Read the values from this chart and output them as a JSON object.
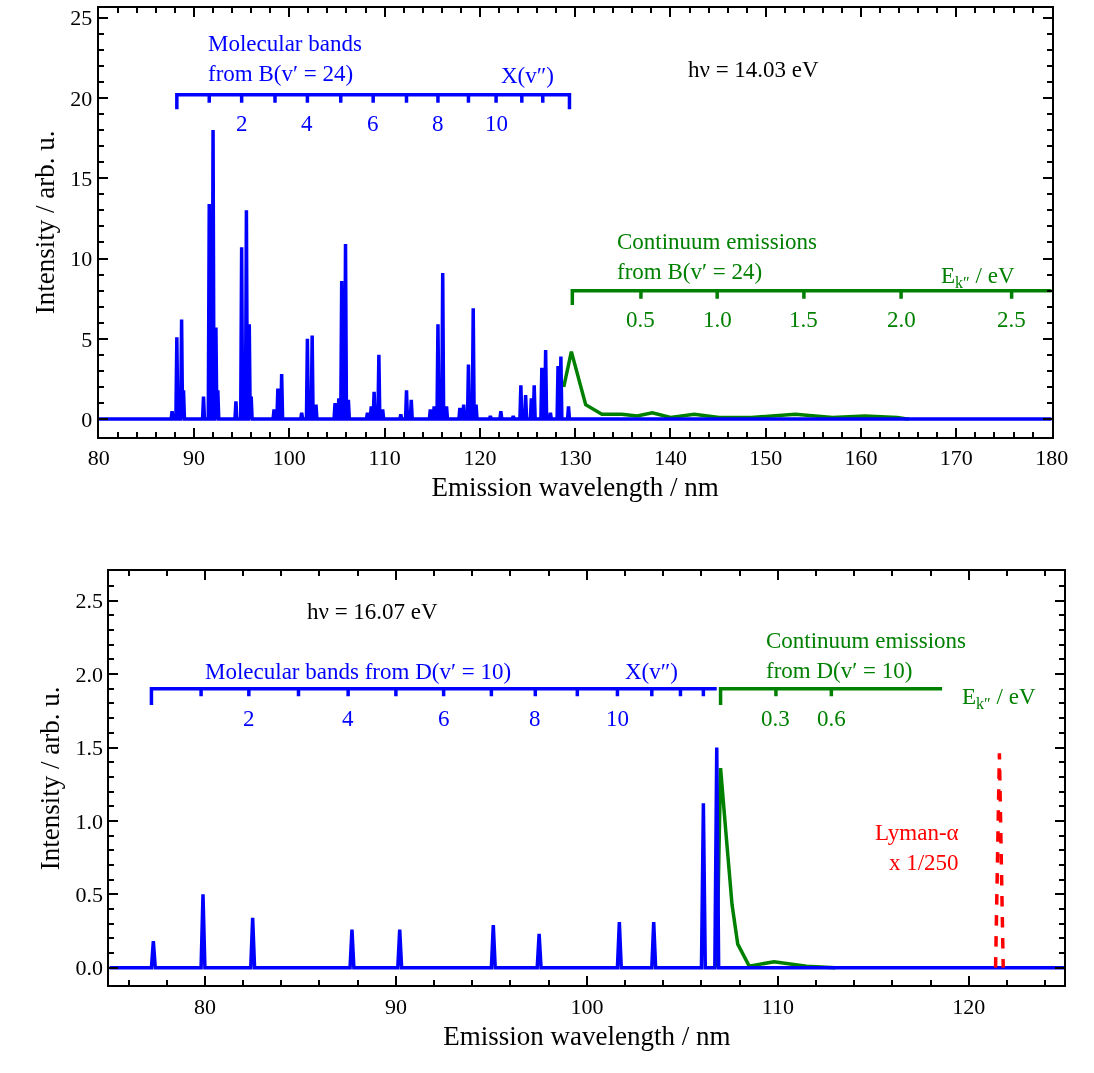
{
  "chart_data": [
    {
      "type": "line",
      "xlabel": "Emission wavelength / nm",
      "ylabel": "Intensity / arb. u.",
      "xlim": [
        80,
        180
      ],
      "ylim": [
        -1.1,
        25.6
      ],
      "xticks": [
        80,
        {
          "value": 82,
          "label": null
        },
        {
          "value": 84,
          "label": null
        },
        {
          "value": 86,
          "label": null
        },
        {
          "value": 88,
          "label": null
        },
        90,
        {
          "value": 92,
          "label": null
        },
        {
          "value": 94,
          "label": null
        },
        {
          "value": 96,
          "label": null
        },
        {
          "value": 98,
          "label": null
        },
        100,
        {
          "value": 102,
          "label": null
        },
        {
          "value": 104,
          "label": null
        },
        {
          "value": 106,
          "label": null
        },
        {
          "value": 108,
          "label": null
        },
        110,
        {
          "value": 112,
          "label": null
        },
        {
          "value": 114,
          "label": null
        },
        {
          "value": 116,
          "label": null
        },
        {
          "value": 118,
          "label": null
        },
        120,
        {
          "value": 122,
          "label": null
        },
        {
          "value": 124,
          "label": null
        },
        {
          "value": 126,
          "label": null
        },
        {
          "value": 128,
          "label": null
        },
        130,
        {
          "value": 132,
          "label": null
        },
        {
          "value": 134,
          "label": null
        },
        {
          "value": 136,
          "label": null
        },
        {
          "value": 138,
          "label": null
        },
        140,
        {
          "value": 142,
          "label": null
        },
        {
          "value": 144,
          "label": null
        },
        {
          "value": 146,
          "label": null
        },
        {
          "value": 148,
          "label": null
        },
        150,
        {
          "value": 152,
          "label": null
        },
        {
          "value": 154,
          "label": null
        },
        {
          "value": 156,
          "label": null
        },
        {
          "value": 158,
          "label": null
        },
        160,
        {
          "value": 162,
          "label": null
        },
        {
          "value": 164,
          "label": null
        },
        {
          "value": 166,
          "label": null
        },
        {
          "value": 168,
          "label": null
        },
        170,
        {
          "value": 172,
          "label": null
        },
        {
          "value": 174,
          "label": null
        },
        {
          "value": 176,
          "label": null
        },
        {
          "value": 178,
          "label": null
        },
        180
      ],
      "yticks": [
        0,
        {
          "value": 1,
          "label": null
        },
        {
          "value": 2,
          "label": null
        },
        {
          "value": 3,
          "label": null
        },
        {
          "value": 4,
          "label": null
        },
        5,
        {
          "value": 6,
          "label": null
        },
        {
          "value": 7,
          "label": null
        },
        {
          "value": 8,
          "label": null
        },
        {
          "value": 9,
          "label": null
        },
        10,
        {
          "value": 11,
          "label": null
        },
        {
          "value": 12,
          "label": null
        },
        {
          "value": 13,
          "label": null
        },
        {
          "value": 14,
          "label": null
        },
        15,
        {
          "value": 16,
          "label": null
        },
        {
          "value": 17,
          "label": null
        },
        {
          "value": 18,
          "label": null
        },
        {
          "value": 19,
          "label": null
        },
        20,
        {
          "value": 21,
          "label": null
        },
        {
          "value": 22,
          "label": null
        },
        {
          "value": 23,
          "label": null
        },
        {
          "value": 24,
          "label": null
        },
        25
      ],
      "series": [
        {
          "color": "#008000",
          "x": [
            128.8,
            129.6,
            131.1,
            132.8,
            134.9,
            136.5,
            138.1,
            140.0,
            142.5,
            145.1,
            148.5,
            153.1,
            157.0,
            160.4,
            163.8,
            165.0
          ],
          "values": [
            2.0,
            4.2,
            0.9,
            0.3,
            0.3,
            0.2,
            0.4,
            0.1,
            0.3,
            0.1,
            0.1,
            0.3,
            0.1,
            0.2,
            0.1,
            0
          ]
        },
        {
          "color": "#0000ff",
          "x": [
            80,
            87.6,
            87.7,
            87.8,
            88.1,
            88.2,
            88.3,
            88.6,
            88.7,
            88.8,
            88.9,
            89.0,
            90.9,
            91.0,
            91.1,
            91.5,
            91.6,
            91.7,
            91.9,
            92.0,
            92.1,
            92.2,
            92.3,
            92.4,
            92.5,
            92.6,
            94.3,
            94.4,
            94.5,
            94.9,
            95.0,
            95.1,
            95.4,
            95.5,
            95.6,
            95.7,
            95.8,
            95.9,
            96.0,
            96.1,
            98.3,
            98.4,
            98.5,
            98.7,
            98.8,
            98.9,
            99.1,
            99.2,
            99.3,
            101.2,
            101.3,
            101.4,
            101.8,
            101.9,
            102.0,
            102.3,
            102.4,
            102.5,
            102.7,
            102.8,
            102.9,
            104.7,
            104.8,
            104.9,
            105.1,
            105.2,
            105.3,
            105.4,
            105.5,
            105.6,
            105.8,
            105.9,
            106.0,
            106.1,
            106.2,
            106.3,
            108.1,
            108.2,
            108.3,
            108.5,
            108.6,
            108.7,
            108.8,
            108.9,
            109.0,
            109.3,
            109.4,
            109.5,
            109.7,
            109.8,
            109.9,
            111.6,
            111.7,
            111.8,
            112.2,
            112.3,
            112.4,
            112.7,
            112.8,
            112.9,
            114.7,
            114.8,
            114.9,
            115.1,
            115.2,
            115.3,
            115.5,
            115.6,
            115.7,
            116.0,
            116.1,
            116.2,
            116.4,
            116.5,
            116.6,
            117.8,
            117.9,
            118.0,
            118.2,
            118.3,
            118.4,
            118.7,
            118.8,
            118.9,
            119.2,
            119.3,
            119.4,
            119.5,
            119.6,
            119.7,
            121.0,
            121.1,
            121.2,
            122.1,
            122.2,
            122.3,
            123.4,
            123.5,
            123.6,
            124.2,
            124.3,
            124.4,
            124.7,
            124.8,
            124.9,
            125.3,
            125.4,
            125.5,
            125.6,
            125.7,
            125.8,
            126.4,
            126.5,
            126.6,
            126.8,
            126.9,
            127.0,
            127.3,
            127.4,
            127.5,
            128.1,
            128.2,
            128.3,
            128.4,
            128.5,
            128.6,
            129.2,
            129.3,
            129.4,
            180
          ],
          "values": [
            0,
            0,
            0.5,
            0,
            0,
            5.1,
            0,
            0,
            6.2,
            0,
            1.8,
            0,
            0,
            1.4,
            0,
            0,
            13.4,
            0,
            0,
            18.0,
            0,
            0,
            5.7,
            0,
            1.8,
            0,
            0,
            1.1,
            0,
            0,
            10.7,
            0,
            0,
            13.0,
            0,
            0,
            5.9,
            0,
            1.4,
            0,
            0,
            0.6,
            0,
            0,
            1.9,
            0,
            0,
            2.8,
            0,
            0,
            0.4,
            0,
            0,
            5.0,
            0,
            0,
            5.2,
            0,
            0,
            0.9,
            0,
            0,
            1.0,
            0,
            0,
            1.3,
            0,
            0,
            8.6,
            0,
            0,
            10.9,
            0,
            0,
            1.2,
            0,
            0,
            0.4,
            0,
            0,
            0.8,
            0,
            0,
            1.7,
            0,
            0,
            4.0,
            0,
            0,
            0.6,
            0,
            0,
            0.3,
            0,
            0,
            1.8,
            0,
            0,
            1.2,
            0,
            0,
            0.6,
            0,
            0,
            0.8,
            0,
            0,
            5.9,
            0,
            0,
            9.1,
            0,
            0,
            0.8,
            0,
            0,
            0.7,
            0,
            0,
            0.9,
            0,
            0,
            3.4,
            0,
            0,
            6.9,
            0,
            0,
            0.9,
            0,
            0,
            0.2,
            0,
            0,
            0.5,
            0,
            0,
            0.2,
            0,
            0,
            2.1,
            0,
            0,
            1.5,
            0,
            0,
            1.3,
            0,
            0,
            2.1,
            0,
            0,
            3.2,
            0,
            0,
            4.3,
            0,
            0,
            0.4,
            0,
            0,
            3.3,
            0,
            0,
            3.9,
            0,
            0,
            0.8,
            0,
            0
          ]
        },
        {
          "color": "#0000ff",
          "x": [
            88.2,
            88.2,
            91.6,
            91.6,
            91.6,
            95.0,
            95.0,
            95.0,
            98.5,
            98.5,
            98.5,
            101.9,
            101.9,
            101.9,
            105.4,
            105.4,
            105.4,
            108.8,
            108.8,
            108.8,
            112.3,
            112.3,
            112.3,
            115.6,
            115.6,
            115.6,
            118.8,
            118.8,
            118.8,
            121.7,
            121.7,
            121.7,
            124.4,
            124.4,
            124.4,
            126.6,
            126.6,
            126.6,
            129.4,
            129.4
          ],
          "values": [
            19.3,
            20.2,
            20.2,
            19.7,
            20.2,
            20.2,
            19.7,
            20.2,
            20.2,
            19.7,
            20.2,
            20.2,
            19.7,
            20.2,
            20.2,
            19.7,
            20.2,
            20.2,
            19.7,
            20.2,
            20.2,
            19.7,
            20.2,
            20.2,
            19.7,
            20.2,
            20.2,
            19.7,
            20.2,
            20.2,
            19.7,
            20.2,
            20.2,
            19.7,
            20.2,
            20.2,
            19.7,
            20.2,
            20.2,
            19.3
          ]
        },
        {
          "color": "#008000",
          "x": [
            129.7,
            129.7,
            136.9,
            136.9,
            136.9,
            144.9,
            144.9,
            144.9,
            154.0,
            154.0,
            154.0,
            164.2,
            164.2,
            164.2,
            175.8,
            175.8,
            175.8,
            180
          ],
          "values": [
            7.1,
            8.0,
            8.0,
            7.5,
            8.0,
            8.0,
            7.5,
            8.0,
            8.0,
            7.5,
            8.0,
            8.0,
            7.5,
            8.0,
            8.0,
            7.5,
            8.0,
            8.0
          ]
        }
      ],
      "annotations": [
        "hν = 14.03 eV",
        "Molecular bands\nfrom B(v′ = 24)",
        "X(v″)",
        "2",
        "4",
        "6",
        "8",
        "10",
        "Continuum emissions\nfrom B(v′ = 24)",
        "E$_{k″}$ / eV",
        "0.5",
        "1.0",
        "1.5",
        "2.0",
        "2.5"
      ]
    },
    {
      "type": "line",
      "xlabel": "Emission wavelength / nm",
      "ylabel": "Intensity / arb. u.",
      "xlim": [
        75,
        125
      ],
      "ylim": [
        -0.12,
        2.7
      ],
      "xticks": [
        {
          "value": 76,
          "label": null
        },
        {
          "value": 78,
          "label": null
        },
        80,
        {
          "value": 82,
          "label": null
        },
        {
          "value": 84,
          "label": null
        },
        {
          "value": 86,
          "label": null
        },
        {
          "value": 88,
          "label": null
        },
        90,
        {
          "value": 92,
          "label": null
        },
        {
          "value": 94,
          "label": null
        },
        {
          "value": 96,
          "label": null
        },
        {
          "value": 98,
          "label": null
        },
        100,
        {
          "value": 102,
          "label": null
        },
        {
          "value": 104,
          "label": null
        },
        {
          "value": 106,
          "label": null
        },
        {
          "value": 108,
          "label": null
        },
        110,
        {
          "value": 112,
          "label": null
        },
        {
          "value": 114,
          "label": null
        },
        {
          "value": 116,
          "label": null
        },
        {
          "value": 118,
          "label": null
        },
        120,
        {
          "value": 122,
          "label": null
        },
        {
          "value": 124,
          "label": null
        }
      ],
      "yticks": [
        {
          "value": 0,
          "label": "0.0"
        },
        {
          "value": 0.1,
          "label": null
        },
        {
          "value": 0.2,
          "label": null
        },
        {
          "value": 0.3,
          "label": null
        },
        {
          "value": 0.4,
          "label": null
        },
        0.5,
        {
          "value": 0.6,
          "label": null
        },
        {
          "value": 0.7,
          "label": null
        },
        {
          "value": 0.8,
          "label": null
        },
        {
          "value": 0.9,
          "label": null
        },
        {
          "value": 1,
          "label": "1.0"
        },
        {
          "value": 1.1,
          "label": null
        },
        {
          "value": 1.2,
          "label": null
        },
        {
          "value": 1.3,
          "label": null
        },
        {
          "value": 1.4,
          "label": null
        },
        1.5,
        {
          "value": 1.6,
          "label": null
        },
        {
          "value": 1.7,
          "label": null
        },
        {
          "value": 1.8,
          "label": null
        },
        {
          "value": 1.9,
          "label": null
        },
        {
          "value": 2,
          "label": "2.0"
        },
        {
          "value": 2.1,
          "label": null
        },
        {
          "value": 2.2,
          "label": null
        },
        {
          "value": 2.3,
          "label": null
        },
        {
          "value": 2.4,
          "label": null
        },
        2.5,
        {
          "value": 2.6,
          "label": null
        }
      ],
      "series": [
        {
          "color": "#008000",
          "x": [
            106.8,
            107.0,
            107.3,
            107.6,
            107.9,
            108.5,
            109.8,
            111.5,
            113.0
          ],
          "values": [
            0,
            1.36,
            0.89,
            0.43,
            0.16,
            0.01,
            0.04,
            0.01,
            0
          ]
        },
        {
          "color": "#0000ff",
          "x": [
            75,
            77.2,
            77.3,
            77.4,
            79.8,
            79.9,
            80.0,
            82.4,
            82.5,
            82.6,
            87.6,
            87.7,
            87.8,
            90.1,
            90.2,
            90.3,
            95.0,
            95.1,
            95.2,
            97.4,
            97.5,
            97.6,
            101.6,
            101.7,
            101.8,
            103.4,
            103.5,
            103.6,
            106.0,
            106.1,
            106.2,
            106.7,
            106.8,
            106.9,
            125
          ],
          "values": [
            0,
            0,
            0.18,
            0,
            0,
            0.5,
            0,
            0,
            0.34,
            0,
            0,
            0.26,
            0,
            0,
            0.26,
            0,
            0,
            0.29,
            0,
            0,
            0.23,
            0,
            0,
            0.31,
            0,
            0,
            0.31,
            0,
            0,
            1.12,
            0,
            0,
            1.5,
            0,
            0
          ]
        },
        {
          "color": "#ff0000",
          "line_style": "dashed",
          "x": [
            121.4,
            121.6,
            121.8
          ],
          "values": [
            0,
            1.46,
            0
          ]
        },
        {
          "color": "#0000ff",
          "x": [
            77.2,
            77.2,
            79.8,
            79.8,
            79.8,
            82.3,
            82.3,
            82.3,
            84.9,
            84.9,
            84.9,
            87.5,
            87.5,
            87.5,
            90.0,
            90.0,
            90.0,
            92.5,
            92.5,
            92.5,
            95.0,
            95.0,
            95.0,
            97.3,
            97.3,
            97.3,
            99.5,
            99.5,
            99.5,
            101.6,
            101.6,
            101.6,
            103.4,
            103.4,
            103.4,
            104.9,
            104.9,
            104.9,
            106.1,
            106.1,
            106.1,
            106.8
          ],
          "values": [
            1.79,
            1.9,
            1.9,
            1.85,
            1.9,
            1.9,
            1.85,
            1.9,
            1.9,
            1.85,
            1.9,
            1.9,
            1.85,
            1.9,
            1.9,
            1.85,
            1.9,
            1.9,
            1.85,
            1.9,
            1.9,
            1.85,
            1.9,
            1.9,
            1.85,
            1.9,
            1.9,
            1.85,
            1.9,
            1.9,
            1.85,
            1.9,
            1.9,
            1.85,
            1.9,
            1.9,
            1.85,
            1.9,
            1.9,
            1.85,
            1.9,
            1.9
          ]
        },
        {
          "color": "#008000",
          "x": [
            107.0,
            107.0,
            109.9,
            109.9,
            109.9,
            112.8,
            112.8,
            112.8,
            118.6
          ],
          "values": [
            1.79,
            1.9,
            1.9,
            1.85,
            1.9,
            1.9,
            1.85,
            1.9,
            1.9
          ]
        }
      ],
      "annotations": [
        "hν = 16.07 eV",
        "Molecular bands from D(v′ = 10)",
        "X(v″)",
        "2",
        "4",
        "6",
        "8",
        "10",
        "Continuum emissions\nfrom D(v′ = 10)",
        "E$_{k″}$ / eV",
        "0.3",
        "0.6",
        "Lyman-α\nx 1/250"
      ]
    }
  ]
}
